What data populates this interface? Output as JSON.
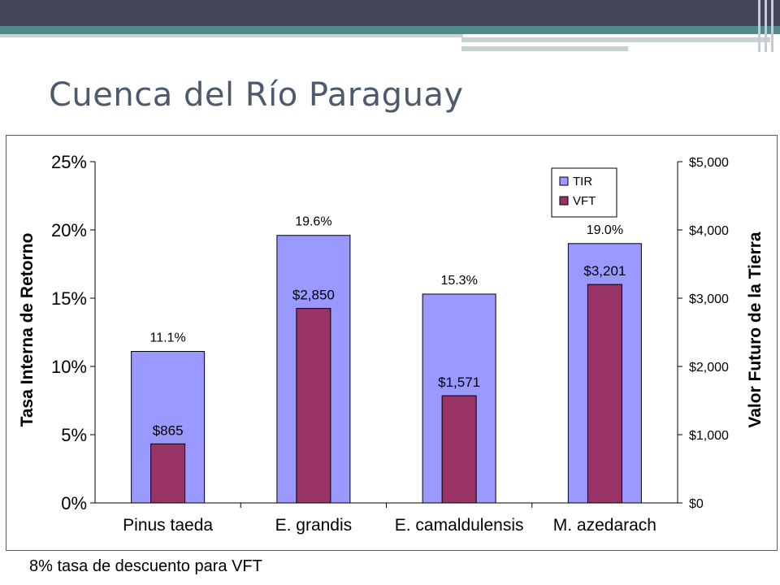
{
  "slide": {
    "title": "Cuenca del Río Paraguay",
    "footnote": "8% tasa de descuento para VFT"
  },
  "colors": {
    "header_dark": "#45455a",
    "header_teal": "#4f8a8a",
    "title_text": "#4d5a6b",
    "tir_bar": "#9999ff",
    "vft_bar": "#993366"
  },
  "chart_data": {
    "type": "bar",
    "categories": [
      "Pinus taeda",
      "E. grandis",
      "E. camaldulensis",
      "M. azedarach"
    ],
    "series": [
      {
        "name": "TIR",
        "axis": "left",
        "values": [
          0.111,
          0.196,
          0.153,
          0.19
        ],
        "labels": [
          "11.1%",
          "19.6%",
          "15.3%",
          "19.0%"
        ]
      },
      {
        "name": "VFT",
        "axis": "right",
        "values": [
          865,
          2850,
          1571,
          3201
        ],
        "labels": [
          "$865",
          "$2,850",
          "$1,571",
          "$3,201"
        ]
      }
    ],
    "ylabel": "Tasa Interna de Retorno",
    "y2label": "Valor Futuro de la Tierra",
    "ylim": [
      0,
      0.25
    ],
    "y2lim": [
      0,
      5000
    ],
    "yticks": [
      "0%",
      "5%",
      "10%",
      "15%",
      "20%",
      "25%"
    ],
    "y2ticks": [
      "$0",
      "$1,000",
      "$2,000",
      "$3,000",
      "$4,000",
      "$5,000"
    ],
    "legend": "top-right",
    "grid": false
  }
}
